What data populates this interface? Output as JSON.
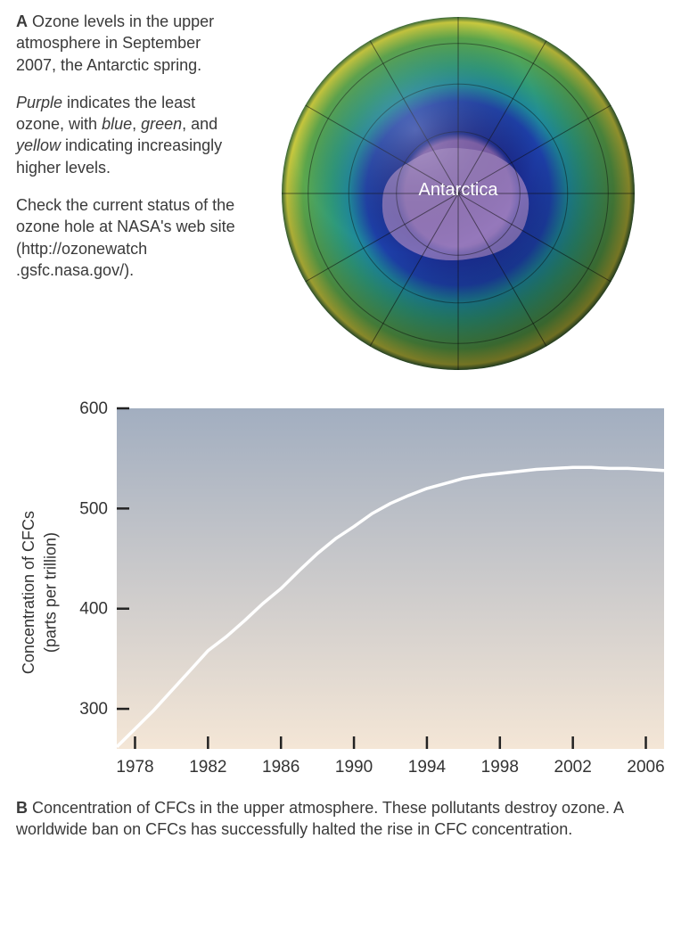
{
  "panelA": {
    "label": "A",
    "p1_rest": " Ozone levels in the upper atmosphere in September 2007, the Antarctic spring.",
    "p2_pre": "",
    "p2_purple": "Purple",
    "p2_mid1": " indicates the least ozone, with ",
    "p2_blue": "blue",
    "p2_comma": ", ",
    "p2_green": "green",
    "p2_and": ", and ",
    "p2_yellow": "yellow",
    "p2_rest": " indicating increasingly higher levels.",
    "p3": "Check the current status of the ozone hole at NASA's web site (http://ozonewatch .gsfc.nasa.gov/).",
    "globe_label": "Antarctica",
    "globe": {
      "colors": {
        "outer_green": "#5da84c",
        "mid_green": "#2f9a7a",
        "teal": "#1e8a9c",
        "blue": "#1d3fa8",
        "deep_blue": "#1a2a8e",
        "purple": "#7a5aa8",
        "yellow_rim": "#c9c93e",
        "grid": "#0d0d0d"
      }
    }
  },
  "chart": {
    "type": "line",
    "ylabel_line1": "Concentration of CFCs",
    "ylabel_line2": "(parts per trillion)",
    "x_ticks": [
      1978,
      1982,
      1986,
      1990,
      1994,
      1998,
      2002,
      2006
    ],
    "y_ticks": [
      300,
      400,
      500,
      600
    ],
    "xlim": [
      1977,
      2007
    ],
    "ylim": [
      260,
      600
    ],
    "series": {
      "x": [
        1977,
        1978,
        1979,
        1980,
        1981,
        1982,
        1983,
        1984,
        1985,
        1986,
        1987,
        1988,
        1989,
        1990,
        1991,
        1992,
        1993,
        1994,
        1995,
        1996,
        1997,
        1998,
        1999,
        2000,
        2001,
        2002,
        2003,
        2004,
        2005,
        2006,
        2007
      ],
      "y": [
        262,
        280,
        298,
        318,
        338,
        358,
        372,
        388,
        405,
        420,
        438,
        455,
        470,
        482,
        495,
        505,
        513,
        520,
        525,
        530,
        533,
        535,
        537,
        539,
        540,
        541,
        541,
        540,
        540,
        539,
        538
      ]
    },
    "line_color": "#ffffff",
    "line_width": 3.5,
    "bg_gradient_top": "#a2aec0",
    "bg_gradient_bottom": "#f4e6d6",
    "axis_color": "#222222",
    "tick_fontsize": 19,
    "label_fontsize": 18
  },
  "panelB": {
    "label": "B",
    "text": " Concentration of CFCs in the upper atmosphere. These pollutants destroy ozone. A worldwide ban on CFCs has successfully halted the rise in CFC concentration."
  }
}
